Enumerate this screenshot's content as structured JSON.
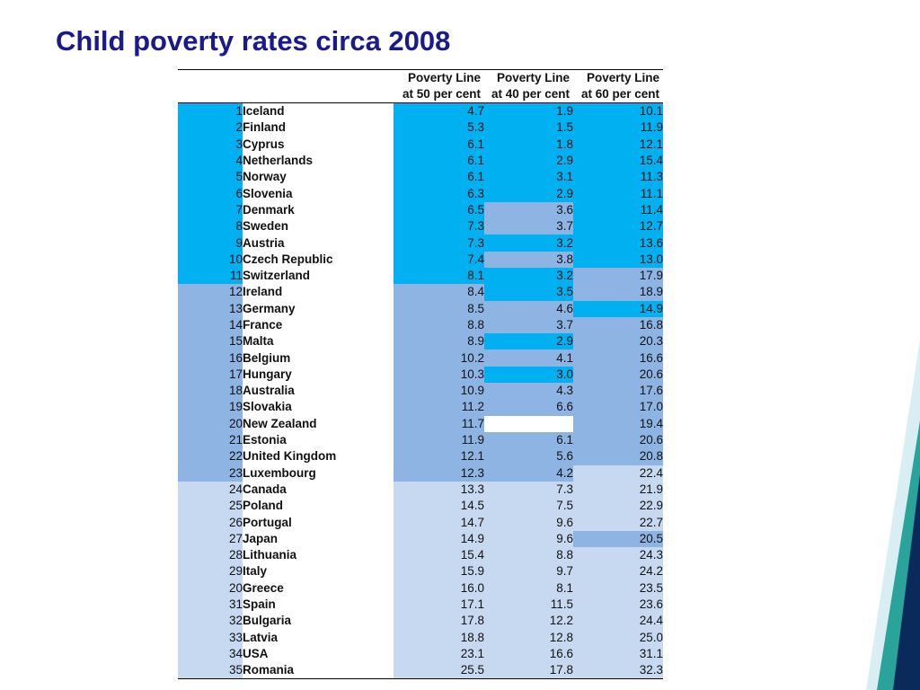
{
  "title": "Child poverty rates circa 2008",
  "colors": {
    "tier1": "#00b0f0",
    "tier2": "#8eb4e3",
    "tier3": "#c6d9f1",
    "title": "#1a1a8c"
  },
  "chart_data": {
    "type": "table",
    "columns": [
      {
        "line1": "Poverty Line",
        "line2": "at 50 per cent"
      },
      {
        "line1": "Poverty Line",
        "line2": "at 40 per cent"
      },
      {
        "line1": "Poverty Line",
        "line2": "at 60 per cent"
      }
    ],
    "rows": [
      {
        "rank": "1",
        "country": "Iceland",
        "values": [
          "4.7",
          "1.9",
          "10.1"
        ],
        "tiers": [
          1,
          1,
          1
        ],
        "rank_tier": 1
      },
      {
        "rank": "2",
        "country": "Finland",
        "values": [
          "5.3",
          "1.5",
          "11.9"
        ],
        "tiers": [
          1,
          1,
          1
        ],
        "rank_tier": 1
      },
      {
        "rank": "3",
        "country": "Cyprus",
        "values": [
          "6.1",
          "1.8",
          "12.1"
        ],
        "tiers": [
          1,
          1,
          1
        ],
        "rank_tier": 1
      },
      {
        "rank": "4",
        "country": "Netherlands",
        "values": [
          "6.1",
          "2.9",
          "15.4"
        ],
        "tiers": [
          1,
          1,
          1
        ],
        "rank_tier": 1
      },
      {
        "rank": "5",
        "country": "Norway",
        "values": [
          "6.1",
          "3.1",
          "11.3"
        ],
        "tiers": [
          1,
          1,
          1
        ],
        "rank_tier": 1
      },
      {
        "rank": "6",
        "country": "Slovenia",
        "values": [
          "6.3",
          "2.9",
          "11.1"
        ],
        "tiers": [
          1,
          1,
          1
        ],
        "rank_tier": 1
      },
      {
        "rank": "7",
        "country": "Denmark",
        "values": [
          "6.5",
          "3.6",
          "11.4"
        ],
        "tiers": [
          1,
          2,
          1
        ],
        "rank_tier": 1
      },
      {
        "rank": "8",
        "country": "Sweden",
        "values": [
          "7.3",
          "3.7",
          "12.7"
        ],
        "tiers": [
          1,
          2,
          1
        ],
        "rank_tier": 1
      },
      {
        "rank": "9",
        "country": "Austria",
        "values": [
          "7.3",
          "3.2",
          "13.6"
        ],
        "tiers": [
          1,
          1,
          1
        ],
        "rank_tier": 1
      },
      {
        "rank": "10",
        "country": "Czech Republic",
        "values": [
          "7.4",
          "3.8",
          "13.0"
        ],
        "tiers": [
          1,
          2,
          1
        ],
        "rank_tier": 1
      },
      {
        "rank": "11",
        "country": "Switzerland",
        "values": [
          "8.1",
          "3.2",
          "17.9"
        ],
        "tiers": [
          1,
          1,
          2
        ],
        "rank_tier": 1
      },
      {
        "rank": "12",
        "country": "Ireland",
        "values": [
          "8.4",
          "3.5",
          "18.9"
        ],
        "tiers": [
          2,
          1,
          2
        ],
        "rank_tier": 2
      },
      {
        "rank": "13",
        "country": "Germany",
        "values": [
          "8.5",
          "4.6",
          "14.9"
        ],
        "tiers": [
          2,
          2,
          1
        ],
        "rank_tier": 2
      },
      {
        "rank": "14",
        "country": "France",
        "values": [
          "8.8",
          "3.7",
          "16.8"
        ],
        "tiers": [
          2,
          2,
          2
        ],
        "rank_tier": 2
      },
      {
        "rank": "15",
        "country": "Malta",
        "values": [
          "8.9",
          "2.9",
          "20.3"
        ],
        "tiers": [
          2,
          1,
          2
        ],
        "rank_tier": 2
      },
      {
        "rank": "16",
        "country": "Belgium",
        "values": [
          "10.2",
          "4.1",
          "16.6"
        ],
        "tiers": [
          2,
          2,
          2
        ],
        "rank_tier": 2
      },
      {
        "rank": "17",
        "country": "Hungary",
        "values": [
          "10.3",
          "3.0",
          "20.6"
        ],
        "tiers": [
          2,
          1,
          2
        ],
        "rank_tier": 2
      },
      {
        "rank": "18",
        "country": "Australia",
        "values": [
          "10.9",
          "4.3",
          "17.6"
        ],
        "tiers": [
          2,
          2,
          2
        ],
        "rank_tier": 2
      },
      {
        "rank": "19",
        "country": "Slovakia",
        "values": [
          "11.2",
          "6.6",
          "17.0"
        ],
        "tiers": [
          2,
          2,
          2
        ],
        "rank_tier": 2
      },
      {
        "rank": "20",
        "country": "New Zealand",
        "values": [
          "11.7",
          "",
          "19.4"
        ],
        "tiers": [
          2,
          0,
          2
        ],
        "rank_tier": 2
      },
      {
        "rank": "21",
        "country": "Estonia",
        "values": [
          "11.9",
          "6.1",
          "20.6"
        ],
        "tiers": [
          2,
          2,
          2
        ],
        "rank_tier": 2
      },
      {
        "rank": "22",
        "country": "United Kingdom",
        "values": [
          "12.1",
          "5.6",
          "20.8"
        ],
        "tiers": [
          2,
          2,
          2
        ],
        "rank_tier": 2
      },
      {
        "rank": "23",
        "country": "Luxembourg",
        "values": [
          "12.3",
          "4.2",
          "22.4"
        ],
        "tiers": [
          2,
          2,
          3
        ],
        "rank_tier": 2
      },
      {
        "rank": "24",
        "country": "Canada",
        "values": [
          "13.3",
          "7.3",
          "21.9"
        ],
        "tiers": [
          3,
          3,
          3
        ],
        "rank_tier": 3
      },
      {
        "rank": "25",
        "country": "Poland",
        "values": [
          "14.5",
          "7.5",
          "22.9"
        ],
        "tiers": [
          3,
          3,
          3
        ],
        "rank_tier": 3
      },
      {
        "rank": "26",
        "country": "Portugal",
        "values": [
          "14.7",
          "9.6",
          "22.7"
        ],
        "tiers": [
          3,
          3,
          3
        ],
        "rank_tier": 3
      },
      {
        "rank": "27",
        "country": "Japan",
        "values": [
          "14.9",
          "9.6",
          "20.5"
        ],
        "tiers": [
          3,
          3,
          2
        ],
        "rank_tier": 3
      },
      {
        "rank": "28",
        "country": "Lithuania",
        "values": [
          "15.4",
          "8.8",
          "24.3"
        ],
        "tiers": [
          3,
          3,
          3
        ],
        "rank_tier": 3
      },
      {
        "rank": "29",
        "country": "Italy",
        "values": [
          "15.9",
          "9.7",
          "24.2"
        ],
        "tiers": [
          3,
          3,
          3
        ],
        "rank_tier": 3
      },
      {
        "rank": "20",
        "country": "Greece",
        "values": [
          "16.0",
          "8.1",
          "23.5"
        ],
        "tiers": [
          3,
          3,
          3
        ],
        "rank_tier": 3
      },
      {
        "rank": "31",
        "country": "Spain",
        "values": [
          "17.1",
          "11.5",
          "23.6"
        ],
        "tiers": [
          3,
          3,
          3
        ],
        "rank_tier": 3
      },
      {
        "rank": "32",
        "country": "Bulgaria",
        "values": [
          "17.8",
          "12.2",
          "24.4"
        ],
        "tiers": [
          3,
          3,
          3
        ],
        "rank_tier": 3
      },
      {
        "rank": "33",
        "country": "Latvia",
        "values": [
          "18.8",
          "12.8",
          "25.0"
        ],
        "tiers": [
          3,
          3,
          3
        ],
        "rank_tier": 3
      },
      {
        "rank": "34",
        "country": "USA",
        "values": [
          "23.1",
          "16.6",
          "31.1"
        ],
        "tiers": [
          3,
          3,
          3
        ],
        "rank_tier": 3
      },
      {
        "rank": "35",
        "country": "Romania",
        "values": [
          "25.5",
          "17.8",
          "32.3"
        ],
        "tiers": [
          3,
          3,
          3
        ],
        "rank_tier": 3
      }
    ]
  }
}
